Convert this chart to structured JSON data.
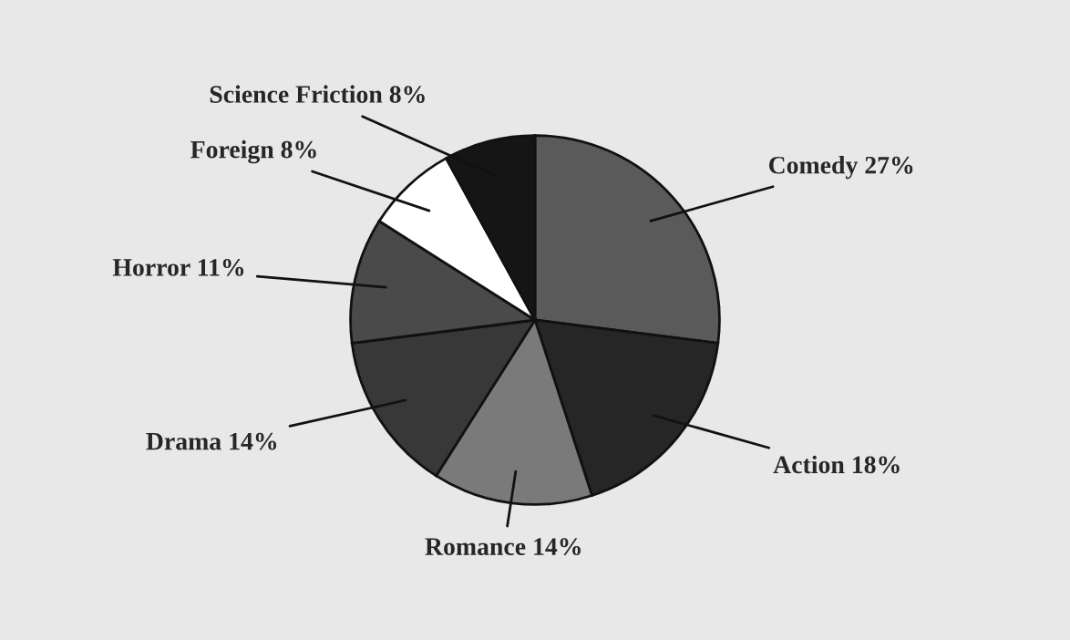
{
  "chart_data": {
    "type": "pie",
    "categories": [
      "Comedy",
      "Action",
      "Romance",
      "Drama",
      "Horror",
      "Foreign",
      "Science Friction"
    ],
    "values": [
      27,
      18,
      14,
      14,
      11,
      8,
      8
    ],
    "value_labels": [
      "27%",
      "18%",
      "14%",
      "14%",
      "11%",
      "8%",
      "8%"
    ],
    "colors": [
      "#5a5a5a",
      "#262626",
      "#7a7a7a",
      "#383838",
      "#4a4a4a",
      "#ffffff",
      "#151515"
    ],
    "legend": false
  }
}
